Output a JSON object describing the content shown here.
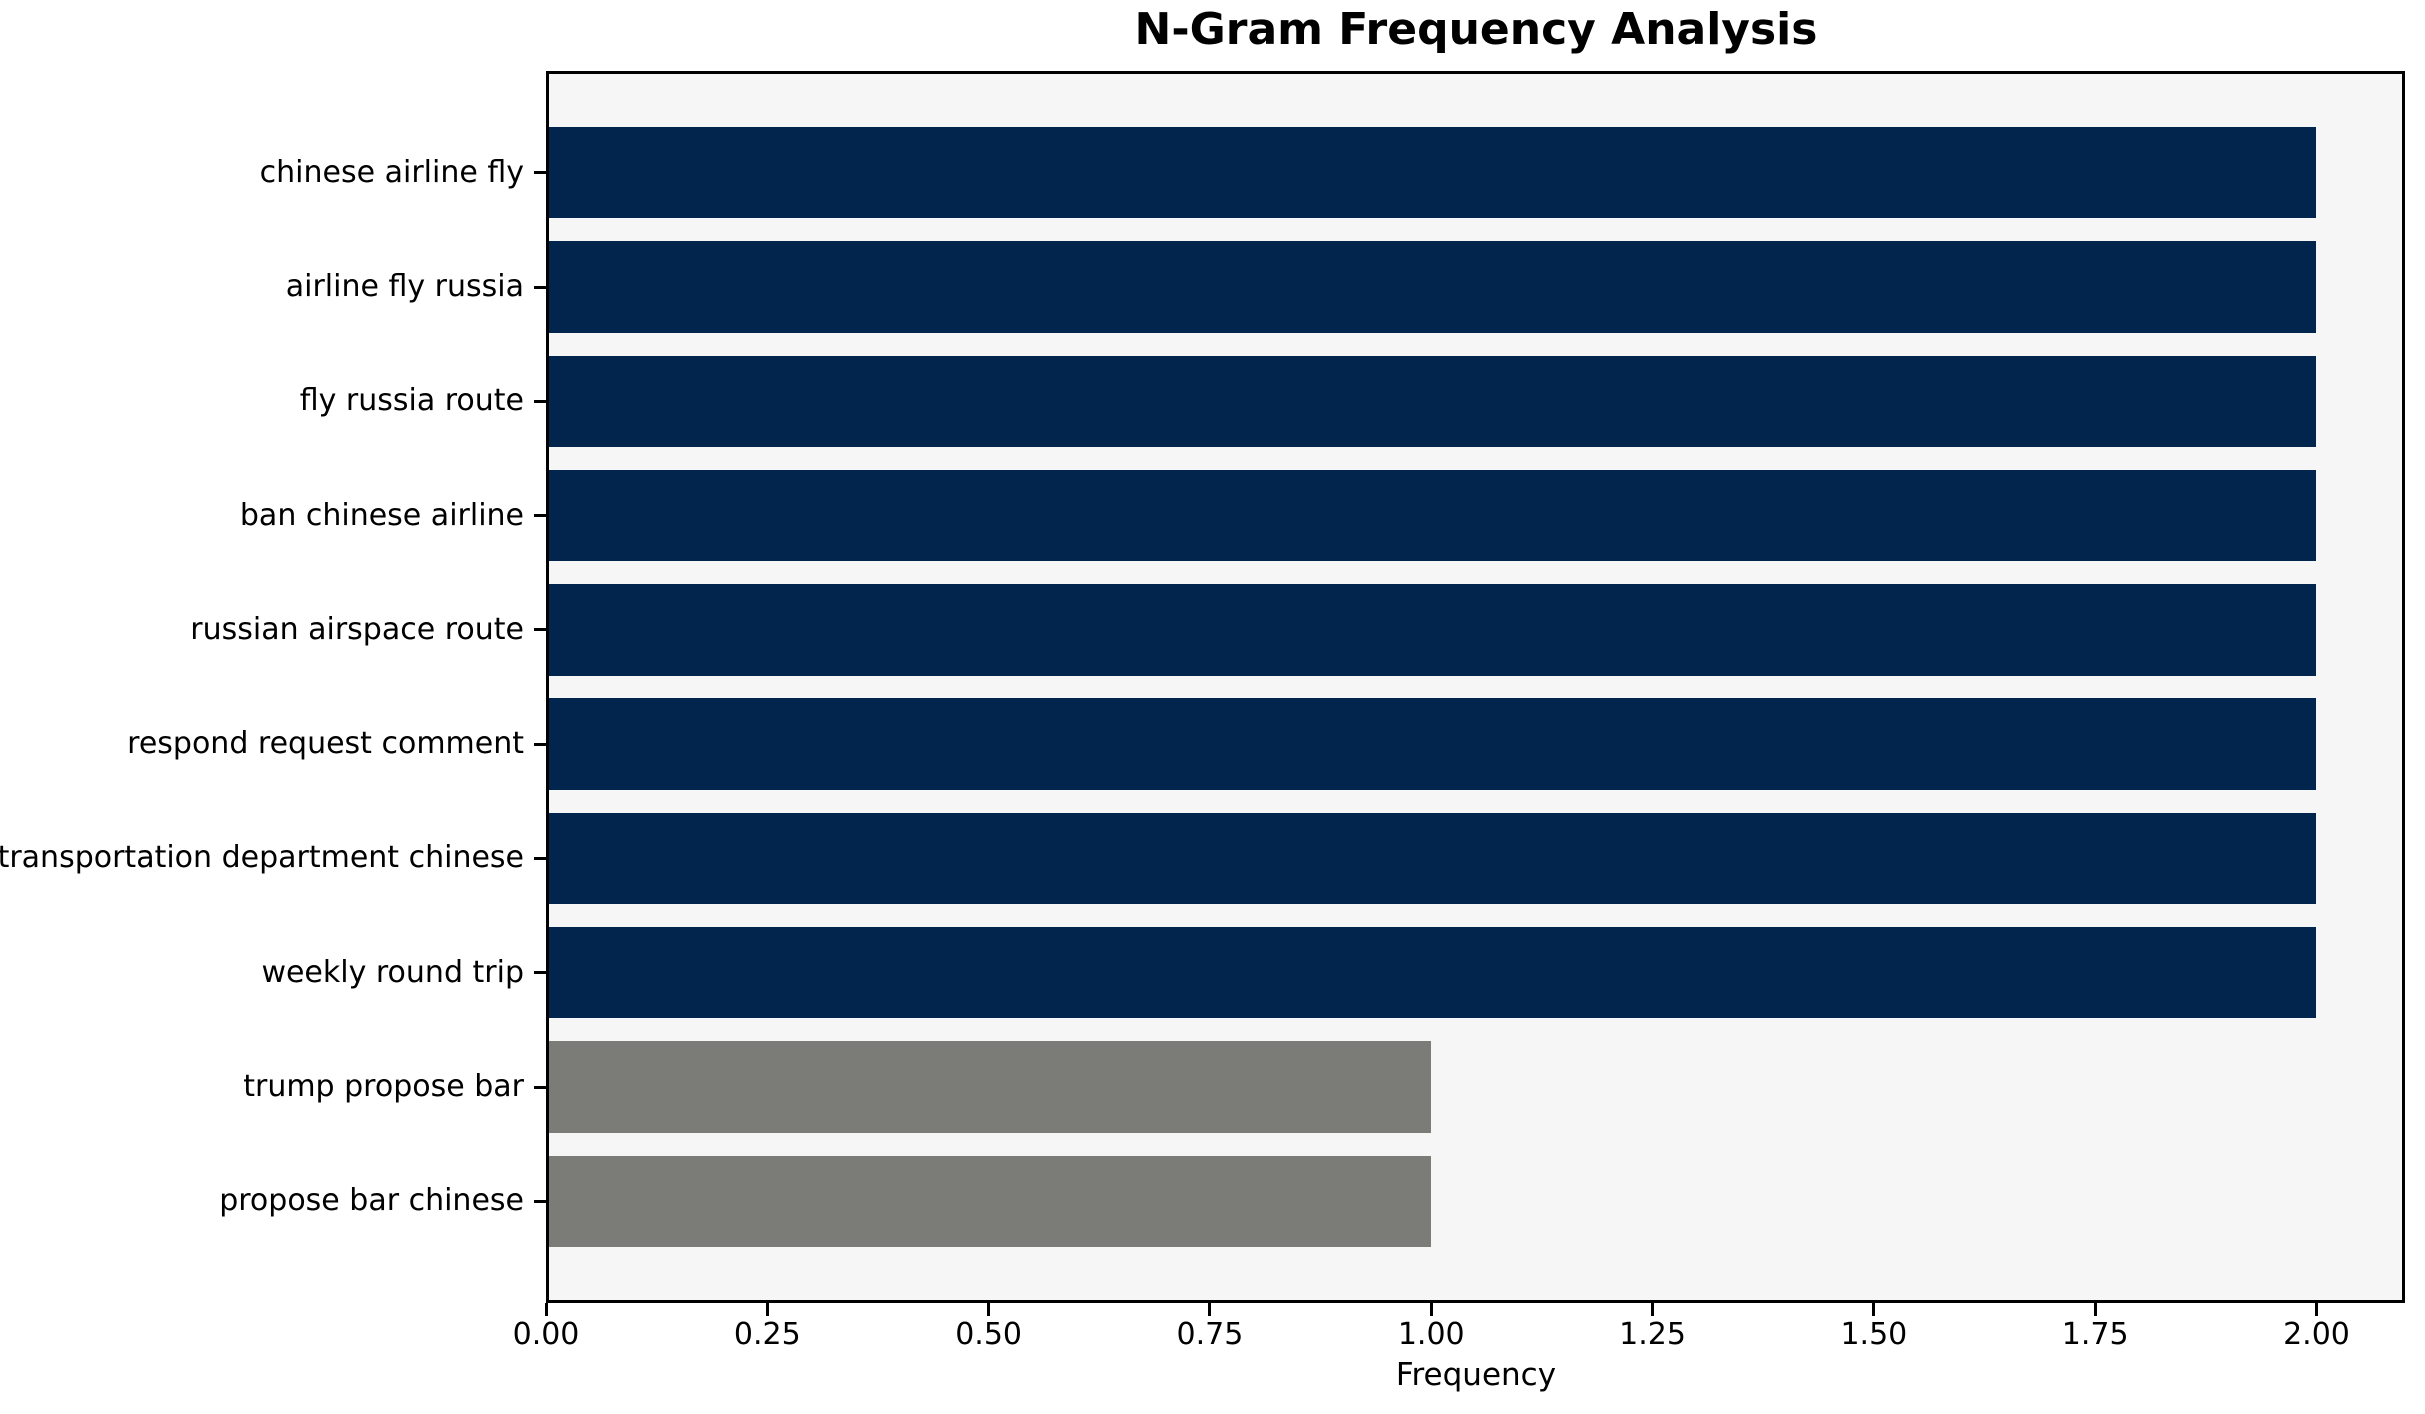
{
  "chart_data": {
    "type": "bar",
    "orientation": "horizontal",
    "title": "N-Gram Frequency Analysis",
    "xlabel": "Frequency",
    "ylabel": "",
    "categories": [
      "chinese airline fly",
      "airline fly russia",
      "fly russia route",
      "ban chinese airline",
      "russian airspace route",
      "respond request comment",
      "transportation department chinese",
      "weekly round trip",
      "trump propose bar",
      "propose bar chinese"
    ],
    "values": [
      2,
      2,
      2,
      2,
      2,
      2,
      2,
      2,
      1,
      1
    ],
    "bar_colors": [
      "#02254d",
      "#02254d",
      "#02254d",
      "#02254d",
      "#02254d",
      "#02254d",
      "#02254d",
      "#02254d",
      "#7b7b78",
      "#7b7b78"
    ],
    "xlim": [
      0,
      2.1
    ],
    "xticks": [
      0.0,
      0.25,
      0.5,
      0.75,
      1.0,
      1.25,
      1.5,
      1.75,
      2.0
    ],
    "xtick_labels": [
      "0.00",
      "0.25",
      "0.50",
      "0.75",
      "1.00",
      "1.25",
      "1.50",
      "1.75",
      "2.00"
    ],
    "grid": false,
    "legend": null,
    "colors": {
      "bar_primary": "#02254d",
      "bar_secondary": "#7b7b78",
      "plot_background": "#f6f6f6",
      "figure_background": "#ffffff",
      "spine": "#000000",
      "text": "#000000"
    }
  }
}
